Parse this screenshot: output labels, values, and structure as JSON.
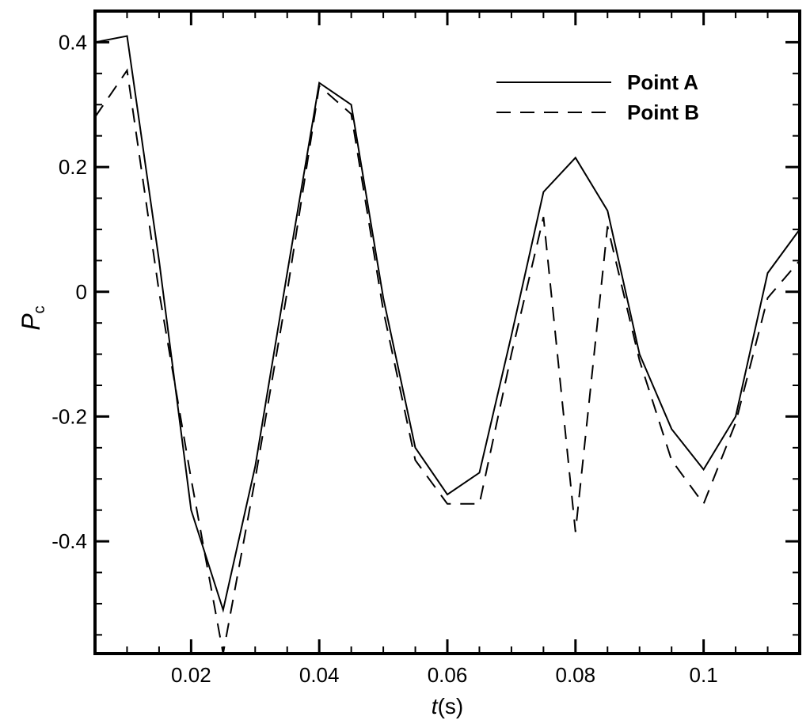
{
  "chart_data": {
    "type": "line",
    "title": "",
    "xlabel": {
      "main": "t",
      "unit": "(s)"
    },
    "ylabel": {
      "main": "P",
      "sub": "c"
    },
    "xlim": [
      0.005,
      0.115
    ],
    "ylim": [
      -0.58,
      0.45
    ],
    "x_ticks": [
      {
        "value": 0.02,
        "label": "0.02"
      },
      {
        "value": 0.04,
        "label": "0.04"
      },
      {
        "value": 0.06,
        "label": "0.06"
      },
      {
        "value": 0.08,
        "label": "0.08"
      },
      {
        "value": 0.1,
        "label": "0.1"
      }
    ],
    "x_minor_step": 0.005,
    "y_ticks": [
      {
        "value": 0.4,
        "label": "0.4"
      },
      {
        "value": 0.2,
        "label": "0.2"
      },
      {
        "value": 0.0,
        "label": "0"
      },
      {
        "value": -0.2,
        "label": "-0.2"
      },
      {
        "value": -0.4,
        "label": "-0.4"
      }
    ],
    "y_minor_step": 0.05,
    "grid": false,
    "legend_position": "top-right",
    "series": [
      {
        "name": "Point A",
        "style": "solid",
        "color": "#000000",
        "x": [
          0.005,
          0.01,
          0.015,
          0.02,
          0.025,
          0.03,
          0.035,
          0.04,
          0.045,
          0.05,
          0.055,
          0.06,
          0.065,
          0.07,
          0.075,
          0.08,
          0.085,
          0.09,
          0.095,
          0.1,
          0.105,
          0.11,
          0.115
        ],
        "y": [
          0.4,
          0.41,
          0.05,
          -0.35,
          -0.51,
          -0.28,
          0.03,
          0.335,
          0.3,
          -0.01,
          -0.25,
          -0.325,
          -0.29,
          -0.07,
          0.16,
          0.215,
          0.13,
          -0.1,
          -0.22,
          -0.285,
          -0.2,
          0.03,
          0.1
        ]
      },
      {
        "name": "Point B",
        "style": "dashed",
        "color": "#000000",
        "x": [
          0.005,
          0.01,
          0.015,
          0.02,
          0.025,
          0.03,
          0.035,
          0.04,
          0.045,
          0.05,
          0.055,
          0.06,
          0.065,
          0.07,
          0.075,
          0.08,
          0.085,
          0.09,
          0.095,
          0.1,
          0.105,
          0.11,
          0.115
        ],
        "y": [
          0.28,
          0.355,
          0.0,
          -0.3,
          -0.58,
          -0.3,
          0.0,
          0.33,
          0.285,
          -0.03,
          -0.27,
          -0.34,
          -0.34,
          -0.1,
          0.12,
          -0.385,
          0.105,
          -0.11,
          -0.27,
          -0.34,
          -0.21,
          -0.01,
          0.05
        ]
      }
    ]
  }
}
